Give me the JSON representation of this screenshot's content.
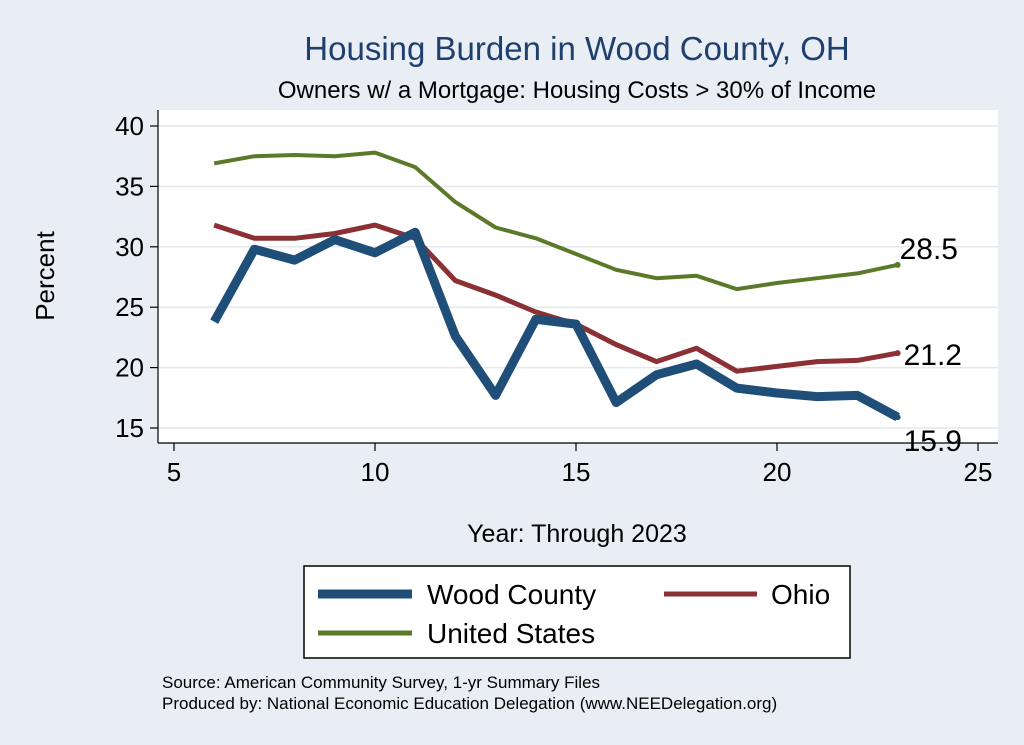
{
  "chart_data": {
    "type": "line",
    "title": "Housing Burden in Wood County, OH",
    "subtitle": "Owners w/ a Mortgage: Housing Costs > 30% of Income",
    "xlabel": "Year: Through 2023",
    "ylabel": "Percent",
    "xlim": [
      5,
      25
    ],
    "ylim": [
      15,
      40
    ],
    "x_ticks": [
      5,
      10,
      15,
      20,
      25
    ],
    "y_ticks": [
      15,
      20,
      25,
      30,
      35,
      40
    ],
    "grid": "horizontal",
    "legend_placement": "bottom",
    "series": [
      {
        "name": "Wood County",
        "color": "#1f4e79",
        "x": [
          6,
          7,
          8,
          9,
          10,
          11,
          12,
          13,
          14,
          15,
          16,
          17,
          18,
          19,
          20,
          21,
          22,
          23
        ],
        "values": [
          23.8,
          29.8,
          28.9,
          30.6,
          29.5,
          31.2,
          22.6,
          17.7,
          24.0,
          23.6,
          17.1,
          19.4,
          20.3,
          18.3,
          17.9,
          17.6,
          17.7,
          15.9
        ],
        "end_label": "15.9"
      },
      {
        "name": "Ohio",
        "color": "#8b3035",
        "x": [
          6,
          7,
          8,
          9,
          10,
          11,
          12,
          13,
          14,
          15,
          16,
          17,
          18,
          19,
          20,
          21,
          22,
          23
        ],
        "values": [
          31.8,
          30.7,
          30.7,
          31.1,
          31.8,
          30.7,
          27.2,
          26.0,
          24.6,
          23.6,
          21.9,
          20.5,
          21.6,
          19.7,
          20.1,
          20.5,
          20.6,
          21.2
        ],
        "end_label": "21.2"
      },
      {
        "name": "United States",
        "color": "#5a7a2a",
        "x": [
          6,
          7,
          8,
          9,
          10,
          11,
          12,
          13,
          14,
          15,
          16,
          17,
          18,
          19,
          20,
          21,
          22,
          23
        ],
        "values": [
          36.9,
          37.5,
          37.6,
          37.5,
          37.8,
          36.6,
          33.7,
          31.6,
          30.7,
          29.4,
          28.1,
          27.4,
          27.6,
          26.5,
          27.0,
          27.4,
          27.8,
          28.5
        ],
        "end_label": "28.5"
      }
    ],
    "source_note": "Source: American Community Survey, 1-yr Summary Files",
    "producer_note": "Produced by: National Economic Education Delegation (www.NEEDelegation.org)"
  }
}
